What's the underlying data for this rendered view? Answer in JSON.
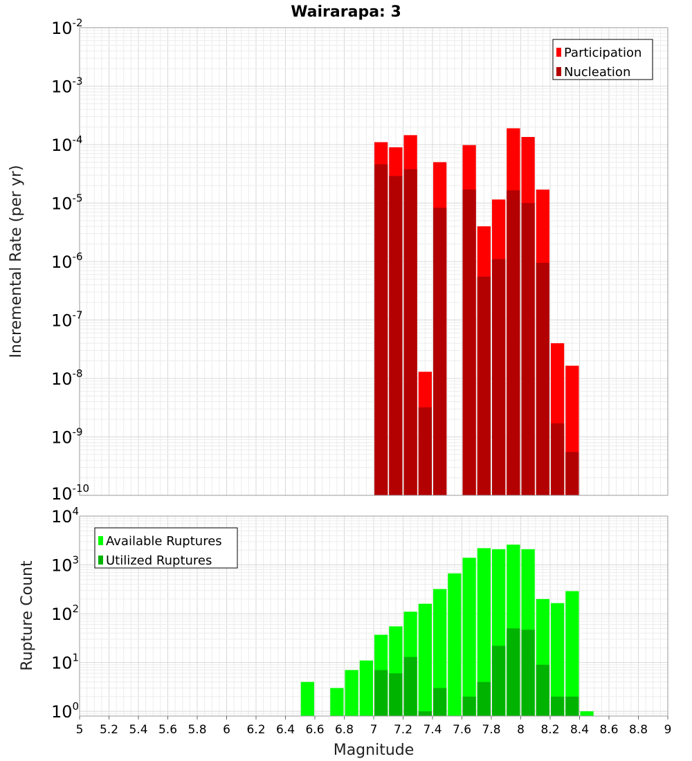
{
  "chart_data": [
    {
      "type": "bar",
      "title": "Wairarapa: 3",
      "xlabel": "",
      "ylabel": "Incremental Rate (per yr)",
      "y_scale": "log",
      "ylim": [
        1e-10,
        0.01
      ],
      "xlim": [
        5,
        9
      ],
      "grid": true,
      "legend_position": "top-right",
      "x": [
        7.05,
        7.15,
        7.25,
        7.35,
        7.45,
        7.65,
        7.75,
        7.85,
        7.95,
        8.05,
        8.15,
        8.25,
        8.35
      ],
      "series": [
        {
          "name": "Participation",
          "color": "#ff0000",
          "values": [
            0.00011,
            9e-05,
            0.000145,
            1.3e-08,
            5e-05,
            9.8e-05,
            4e-06,
            1.15e-05,
            0.00019,
            0.000135,
            1.7e-05,
            4e-08,
            1.65e-08
          ]
        },
        {
          "name": "Nucleation",
          "color": "#b30000",
          "values": [
            4.6e-05,
            2.9e-05,
            3.8e-05,
            3.2e-09,
            8.3e-06,
            1.7e-05,
            5.5e-07,
            1.1e-06,
            1.65e-05,
            1e-05,
            9.5e-07,
            1.7e-09,
            5.5e-10
          ]
        }
      ],
      "y_ticks": [
        {
          "base": "10",
          "exp": "-2",
          "value": 0.01
        },
        {
          "base": "10",
          "exp": "-3",
          "value": 0.001
        },
        {
          "base": "10",
          "exp": "-4",
          "value": 0.0001
        },
        {
          "base": "10",
          "exp": "-5",
          "value": 1e-05
        },
        {
          "base": "10",
          "exp": "-6",
          "value": 1e-06
        },
        {
          "base": "10",
          "exp": "-7",
          "value": 1e-07
        },
        {
          "base": "10",
          "exp": "-8",
          "value": 1e-08
        },
        {
          "base": "10",
          "exp": "-9",
          "value": 1e-09
        },
        {
          "base": "10",
          "exp": "-10",
          "value": 1e-10
        }
      ]
    },
    {
      "type": "bar",
      "title": "",
      "xlabel": "Magnitude",
      "ylabel": "Rupture Count",
      "y_scale": "log",
      "ylim": [
        0.8,
        10000
      ],
      "xlim": [
        5,
        9
      ],
      "grid": true,
      "legend_position": "top-left",
      "x": [
        6.55,
        6.75,
        6.85,
        6.95,
        7.05,
        7.15,
        7.25,
        7.35,
        7.45,
        7.55,
        7.65,
        7.75,
        7.85,
        7.95,
        8.05,
        8.15,
        8.25,
        8.35,
        8.45
      ],
      "series": [
        {
          "name": "Available Ruptures",
          "color": "#00ff00",
          "values": [
            4,
            3,
            7,
            11,
            37,
            55,
            110,
            160,
            320,
            670,
            1400,
            2200,
            2100,
            2600,
            2100,
            200,
            165,
            290,
            1
          ]
        },
        {
          "name": "Utilized Ruptures",
          "color": "#00b300",
          "values": [
            null,
            null,
            null,
            null,
            7,
            6,
            13,
            1,
            3,
            null,
            2,
            4,
            22,
            50,
            47,
            9,
            2,
            2,
            null
          ]
        }
      ],
      "y_ticks": [
        {
          "base": "10",
          "exp": "4",
          "value": 10000
        },
        {
          "base": "10",
          "exp": "3",
          "value": 1000
        },
        {
          "base": "10",
          "exp": "2",
          "value": 100
        },
        {
          "base": "10",
          "exp": "1",
          "value": 10
        },
        {
          "base": "10",
          "exp": "0",
          "value": 1
        }
      ],
      "x_ticks": [
        "5",
        "5.2",
        "5.4",
        "5.6",
        "5.8",
        "6",
        "6.2",
        "6.4",
        "6.6",
        "6.8",
        "7",
        "7.2",
        "7.4",
        "7.6",
        "7.8",
        "8",
        "8.2",
        "8.4",
        "8.6",
        "8.8",
        "9"
      ]
    }
  ]
}
